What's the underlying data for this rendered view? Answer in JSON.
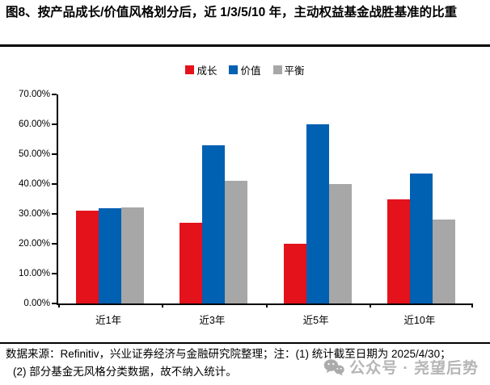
{
  "page": {
    "title": "图8、按产品成长/价值风格划分后，近 1/3/5/10 年，主动权益基金战胜基准的比重",
    "background_color": "#ffffff"
  },
  "chart_data": {
    "type": "bar",
    "title": "",
    "categories": [
      "近1年",
      "近3年",
      "近5年",
      "近10年"
    ],
    "series": [
      {
        "name": "成长",
        "color": "#e3121b",
        "values": [
          31.0,
          27.0,
          20.0,
          35.0
        ]
      },
      {
        "name": "价值",
        "color": "#0060b2",
        "values": [
          32.0,
          53.0,
          60.0,
          43.5
        ]
      },
      {
        "name": "平衡",
        "color": "#a7a7a7",
        "values": [
          32.3,
          41.0,
          40.0,
          28.0
        ]
      }
    ],
    "value_unit": "%",
    "ylim": [
      0,
      70
    ],
    "ytick_step": 10,
    "yticks": [
      "0.00%",
      "10.00%",
      "20.00%",
      "30.00%",
      "40.00%",
      "50.00%",
      "60.00%",
      "70.00%"
    ],
    "xlabel": "",
    "ylabel": "",
    "grid": false,
    "legend_position": "top-center",
    "axis_color": "#000000"
  },
  "footer": {
    "source_line1": "数据来源：Refinitiv，兴业证券经济与金融研究院整理；注：(1) 统计截至日期为 2025/4/30；",
    "source_line2": "(2) 部分基金无风格分类数据，故不纳入统计。"
  },
  "watermark": {
    "icon": "wechat-icon",
    "text": "公众号 · 尧望后势"
  }
}
